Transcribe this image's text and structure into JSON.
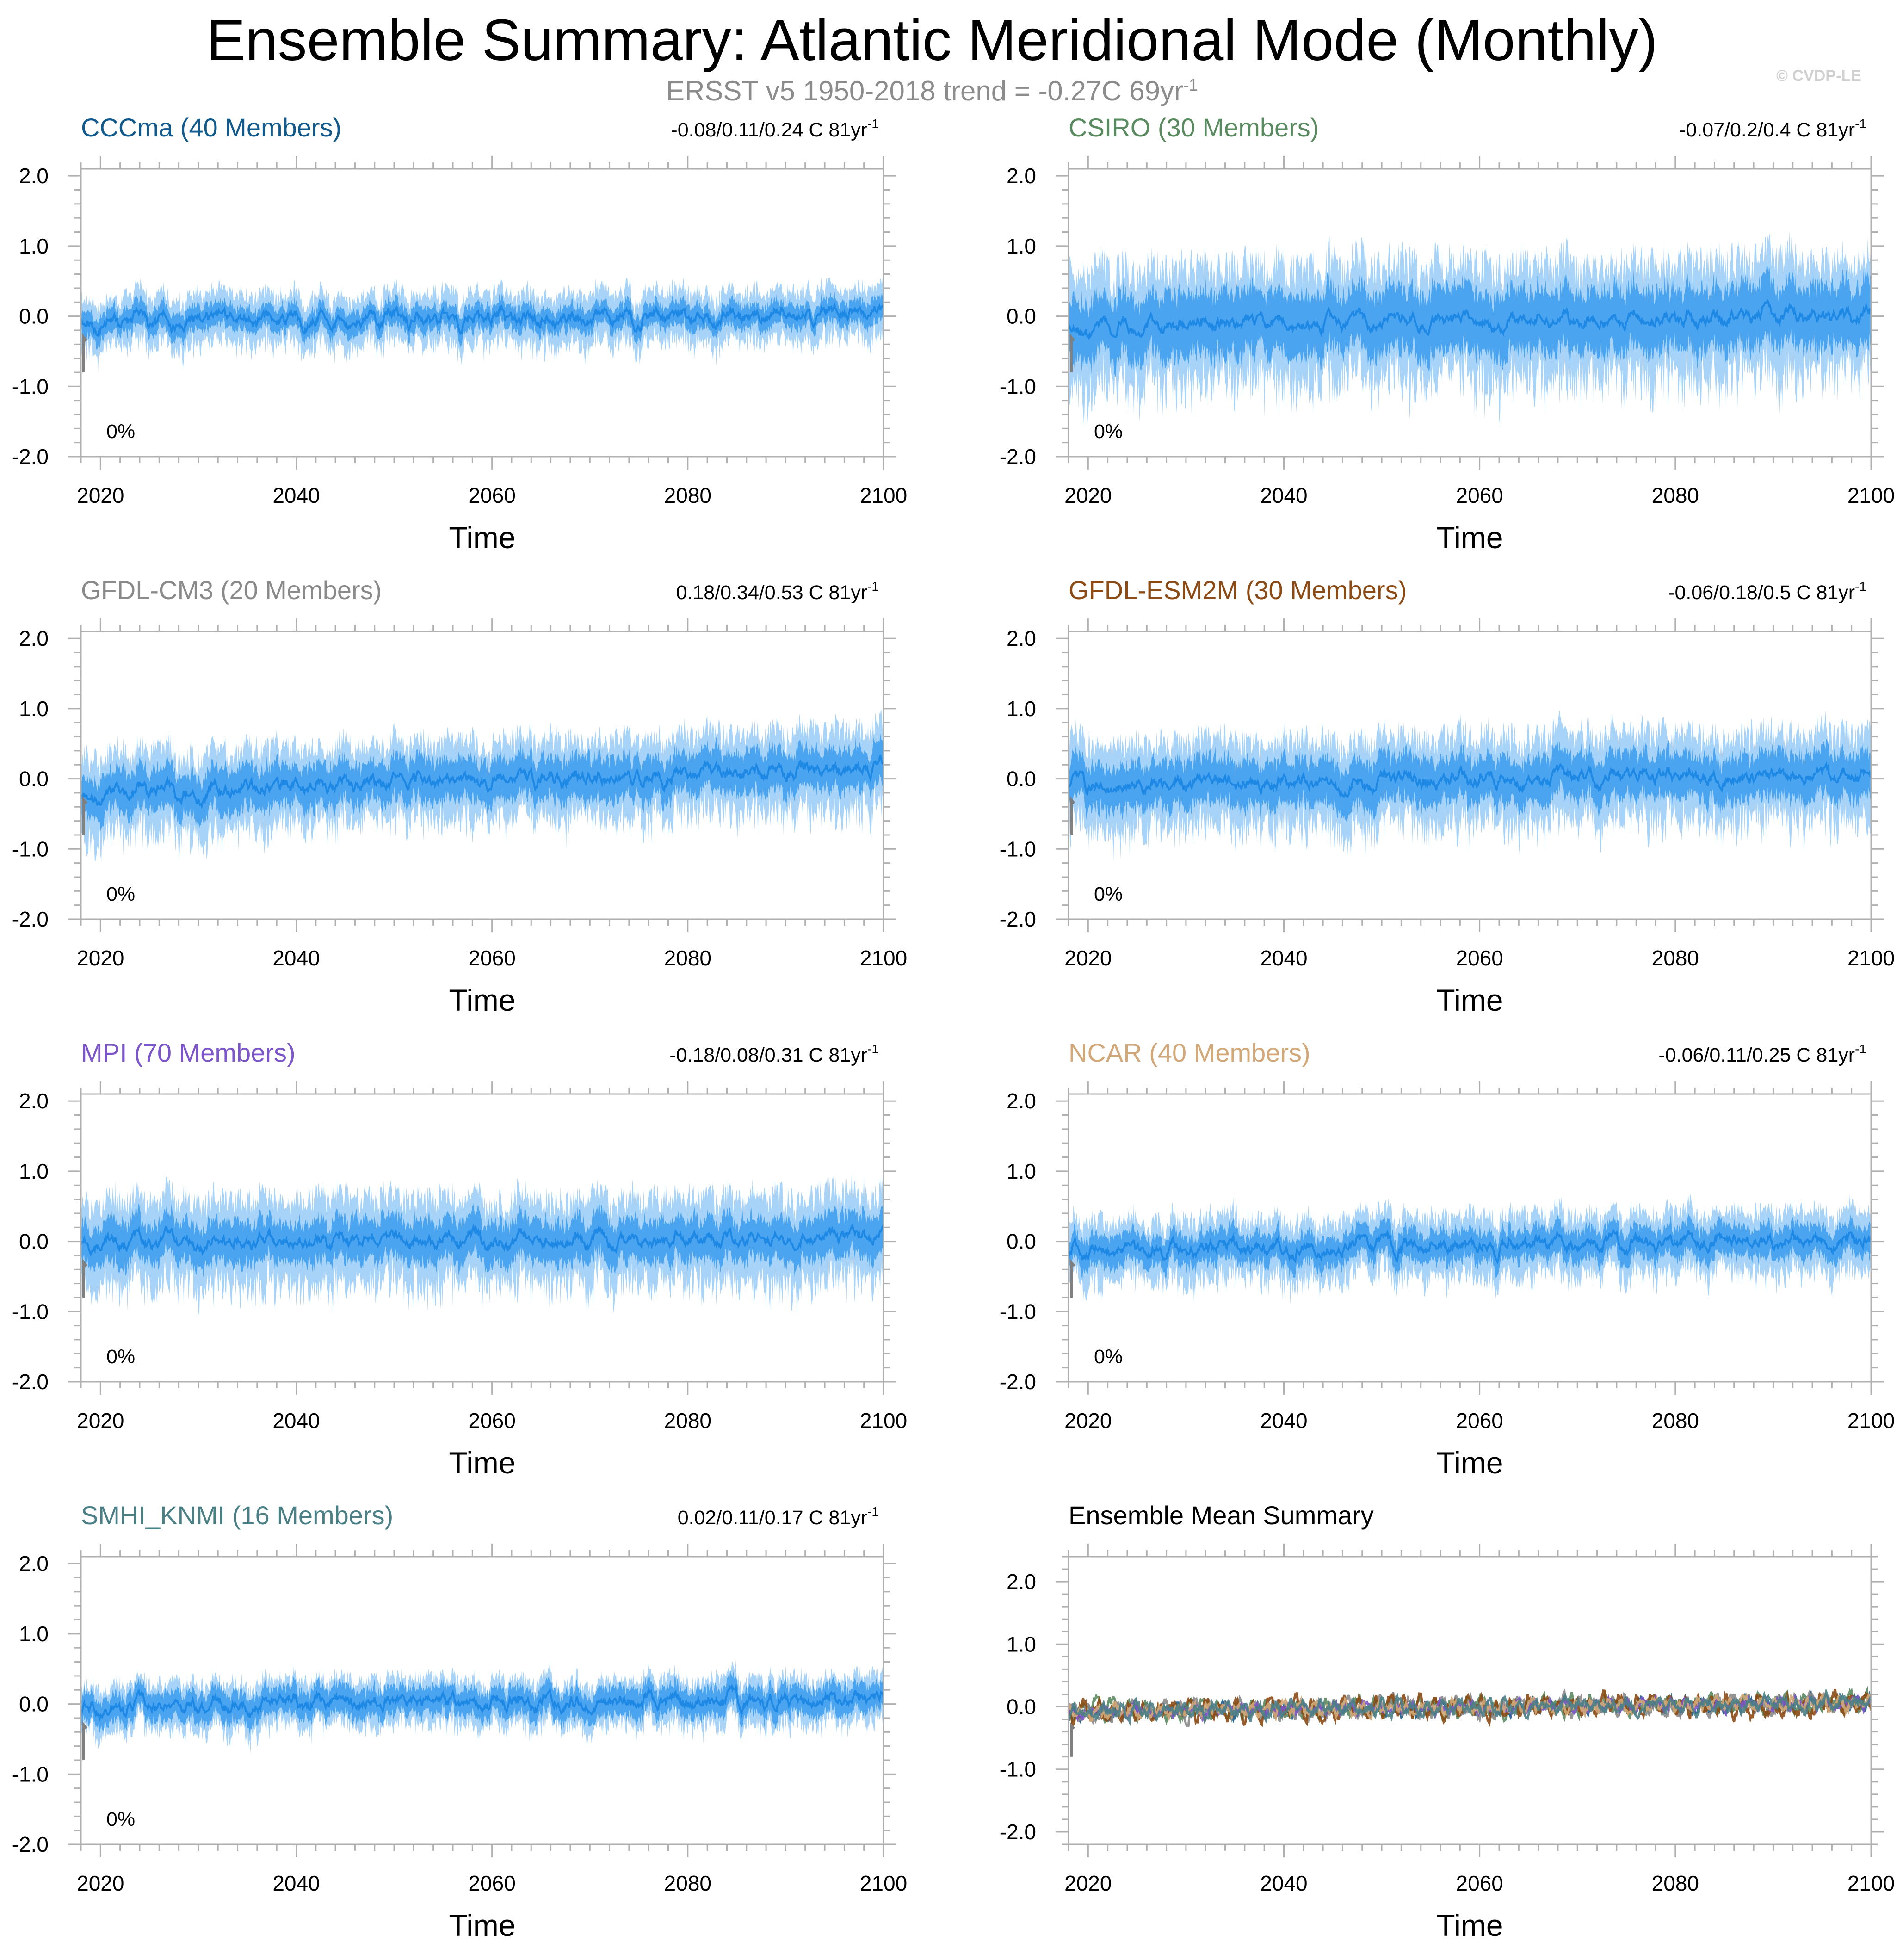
{
  "header": {
    "title": "Ensemble Summary: Atlantic Meridional Mode (Monthly)",
    "subtitle": "ERSST v5 1950-2018 trend = -0.27C 69yr",
    "subtitle_sup": "-1",
    "credit": "© CVDP-LE"
  },
  "colors": {
    "band_outer": "#a6d3f7",
    "band_inner": "#4aa4f0",
    "mean_line": "#1e88e5",
    "obs_gray": "#808080",
    "axis": "#b0b0b0"
  },
  "chart_data": [
    {
      "type": "area",
      "name": "cccma",
      "title": "CCCma (40 Members)",
      "title_color": "#125a8c",
      "trend": "-0.08/0.11/0.24 C 81yr",
      "trend_sup": "-1",
      "pct_label": "0%",
      "x_range": [
        2018,
        2100
      ],
      "x_ticks": [
        2020,
        2040,
        2060,
        2080,
        2100
      ],
      "xlabel": "Time",
      "ylim": [
        -2.0,
        2.1
      ],
      "y_ticks": [
        2.0,
        1.0,
        0.0,
        -1.0,
        -2.0
      ],
      "y_tick_labels": [
        "2.0",
        "1.0",
        "0.0",
        "-1.0",
        "-2.0"
      ],
      "band_outer_amp": 0.34,
      "band_inner_amp": 0.17,
      "trend_start": -0.08,
      "trend_end": 0.02,
      "seed": 11
    },
    {
      "type": "area",
      "name": "csiro",
      "title": "CSIRO (30 Members)",
      "title_color": "#5a8a60",
      "trend": "-0.07/0.2/0.4 C 81yr",
      "trend_sup": "-1",
      "pct_label": "0%",
      "x_range": [
        2018,
        2100
      ],
      "x_ticks": [
        2020,
        2040,
        2060,
        2080,
        2100
      ],
      "xlabel": "Time",
      "ylim": [
        -2.0,
        2.1
      ],
      "y_ticks": [
        2.0,
        1.0,
        0.0,
        -1.0,
        -2.0
      ],
      "y_tick_labels": [
        "2.0",
        "1.0",
        "0.0",
        "-1.0",
        "-2.0"
      ],
      "band_outer_amp": 0.8,
      "band_inner_amp": 0.45,
      "trend_start": -0.15,
      "trend_end": 0.02,
      "seed": 23
    },
    {
      "type": "area",
      "name": "gfdl-cm3",
      "title": "GFDL-CM3 (20 Members)",
      "title_color": "#8a8a8a",
      "trend": "0.18/0.34/0.53 C 81yr",
      "trend_sup": "-1",
      "pct_label": "0%",
      "x_range": [
        2018,
        2100
      ],
      "x_ticks": [
        2020,
        2040,
        2060,
        2080,
        2100
      ],
      "xlabel": "Time",
      "ylim": [
        -2.0,
        2.1
      ],
      "y_ticks": [
        2.0,
        1.0,
        0.0,
        -1.0,
        -2.0
      ],
      "y_tick_labels": [
        "2.0",
        "1.0",
        "0.0",
        "-1.0",
        "-2.0"
      ],
      "band_outer_amp": 0.55,
      "band_inner_amp": 0.3,
      "trend_start": -0.2,
      "trend_end": 0.15,
      "seed": 37
    },
    {
      "type": "area",
      "name": "gfdl-esm2m",
      "title": "GFDL-ESM2M (30 Members)",
      "title_color": "#8c4a14",
      "trend": "-0.06/0.18/0.5 C 81yr",
      "trend_sup": "-1",
      "pct_label": "0%",
      "x_range": [
        2018,
        2100
      ],
      "x_ticks": [
        2020,
        2040,
        2060,
        2080,
        2100
      ],
      "xlabel": "Time",
      "ylim": [
        -2.0,
        2.1
      ],
      "y_ticks": [
        2.0,
        1.0,
        0.0,
        -1.0,
        -2.0
      ],
      "y_tick_labels": [
        "2.0",
        "1.0",
        "0.0",
        "-1.0",
        "-2.0"
      ],
      "band_outer_amp": 0.6,
      "band_inner_amp": 0.32,
      "trend_start": -0.1,
      "trend_end": 0.08,
      "seed": 41
    },
    {
      "type": "area",
      "name": "mpi",
      "title": "MPI (70 Members)",
      "title_color": "#7b55c9",
      "trend": "-0.18/0.08/0.31 C 81yr",
      "trend_sup": "-1",
      "pct_label": "0%",
      "x_range": [
        2018,
        2100
      ],
      "x_ticks": [
        2020,
        2040,
        2060,
        2080,
        2100
      ],
      "xlabel": "Time",
      "ylim": [
        -2.0,
        2.1
      ],
      "y_ticks": [
        2.0,
        1.0,
        0.0,
        -1.0,
        -2.0
      ],
      "y_tick_labels": [
        "2.0",
        "1.0",
        "0.0",
        "-1.0",
        "-2.0"
      ],
      "band_outer_amp": 0.6,
      "band_inner_amp": 0.3,
      "trend_start": -0.02,
      "trend_end": 0.05,
      "seed": 53
    },
    {
      "type": "area",
      "name": "ncar",
      "title": "NCAR (40 Members)",
      "title_color": "#d2a878",
      "trend": "-0.06/0.11/0.25 C 81yr",
      "trend_sup": "-1",
      "pct_label": "0%",
      "x_range": [
        2018,
        2100
      ],
      "x_ticks": [
        2020,
        2040,
        2060,
        2080,
        2100
      ],
      "xlabel": "Time",
      "ylim": [
        -2.0,
        2.1
      ],
      "y_ticks": [
        2.0,
        1.0,
        0.0,
        -1.0,
        -2.0
      ],
      "y_tick_labels": [
        "2.0",
        "1.0",
        "0.0",
        "-1.0",
        "-2.0"
      ],
      "band_outer_amp": 0.42,
      "band_inner_amp": 0.22,
      "trend_start": -0.12,
      "trend_end": 0.02,
      "seed": 67
    },
    {
      "type": "area",
      "name": "smhi-knmi",
      "title": "SMHI_KNMI (16 Members)",
      "title_color": "#4a7f86",
      "trend": "0.02/0.11/0.17 C 81yr",
      "trend_sup": "-1",
      "pct_label": "0%",
      "x_range": [
        2018,
        2100
      ],
      "x_ticks": [
        2020,
        2040,
        2060,
        2080,
        2100
      ],
      "xlabel": "Time",
      "ylim": [
        -2.0,
        2.1
      ],
      "y_ticks": [
        2.0,
        1.0,
        0.0,
        -1.0,
        -2.0
      ],
      "y_tick_labels": [
        "2.0",
        "1.0",
        "0.0",
        "-1.0",
        "-2.0"
      ],
      "band_outer_amp": 0.32,
      "band_inner_amp": 0.2,
      "trend_start": -0.05,
      "trend_end": 0.1,
      "seed": 79
    },
    {
      "type": "line",
      "name": "ensemble-mean",
      "title": "Ensemble Mean Summary",
      "title_color": "#000000",
      "x_range": [
        2018,
        2100
      ],
      "x_ticks": [
        2020,
        2040,
        2060,
        2080,
        2100
      ],
      "xlabel": "Time",
      "ylim": [
        -2.2,
        2.4
      ],
      "y_ticks": [
        2.0,
        1.0,
        0.0,
        -1.0,
        -2.0
      ],
      "y_tick_labels": [
        "2.0",
        "1.0",
        "0.0",
        "-1.0",
        "-2.0"
      ],
      "series": [
        {
          "name": "CCCma",
          "color": "#125a8c",
          "amp": 0.12,
          "seed": 101
        },
        {
          "name": "CSIRO",
          "color": "#5a8a60",
          "amp": 0.16,
          "seed": 103
        },
        {
          "name": "GFDL-CM3",
          "color": "#8a8a8a",
          "amp": 0.16,
          "seed": 107
        },
        {
          "name": "GFDL-ESM2M",
          "color": "#8c4a14",
          "amp": 0.18,
          "seed": 109
        },
        {
          "name": "MPI",
          "color": "#7b55c9",
          "amp": 0.1,
          "seed": 113
        },
        {
          "name": "NCAR",
          "color": "#d2a878",
          "amp": 0.12,
          "seed": 127
        },
        {
          "name": "SMHI_KNMI",
          "color": "#4a7f86",
          "amp": 0.14,
          "seed": 131
        }
      ]
    }
  ]
}
